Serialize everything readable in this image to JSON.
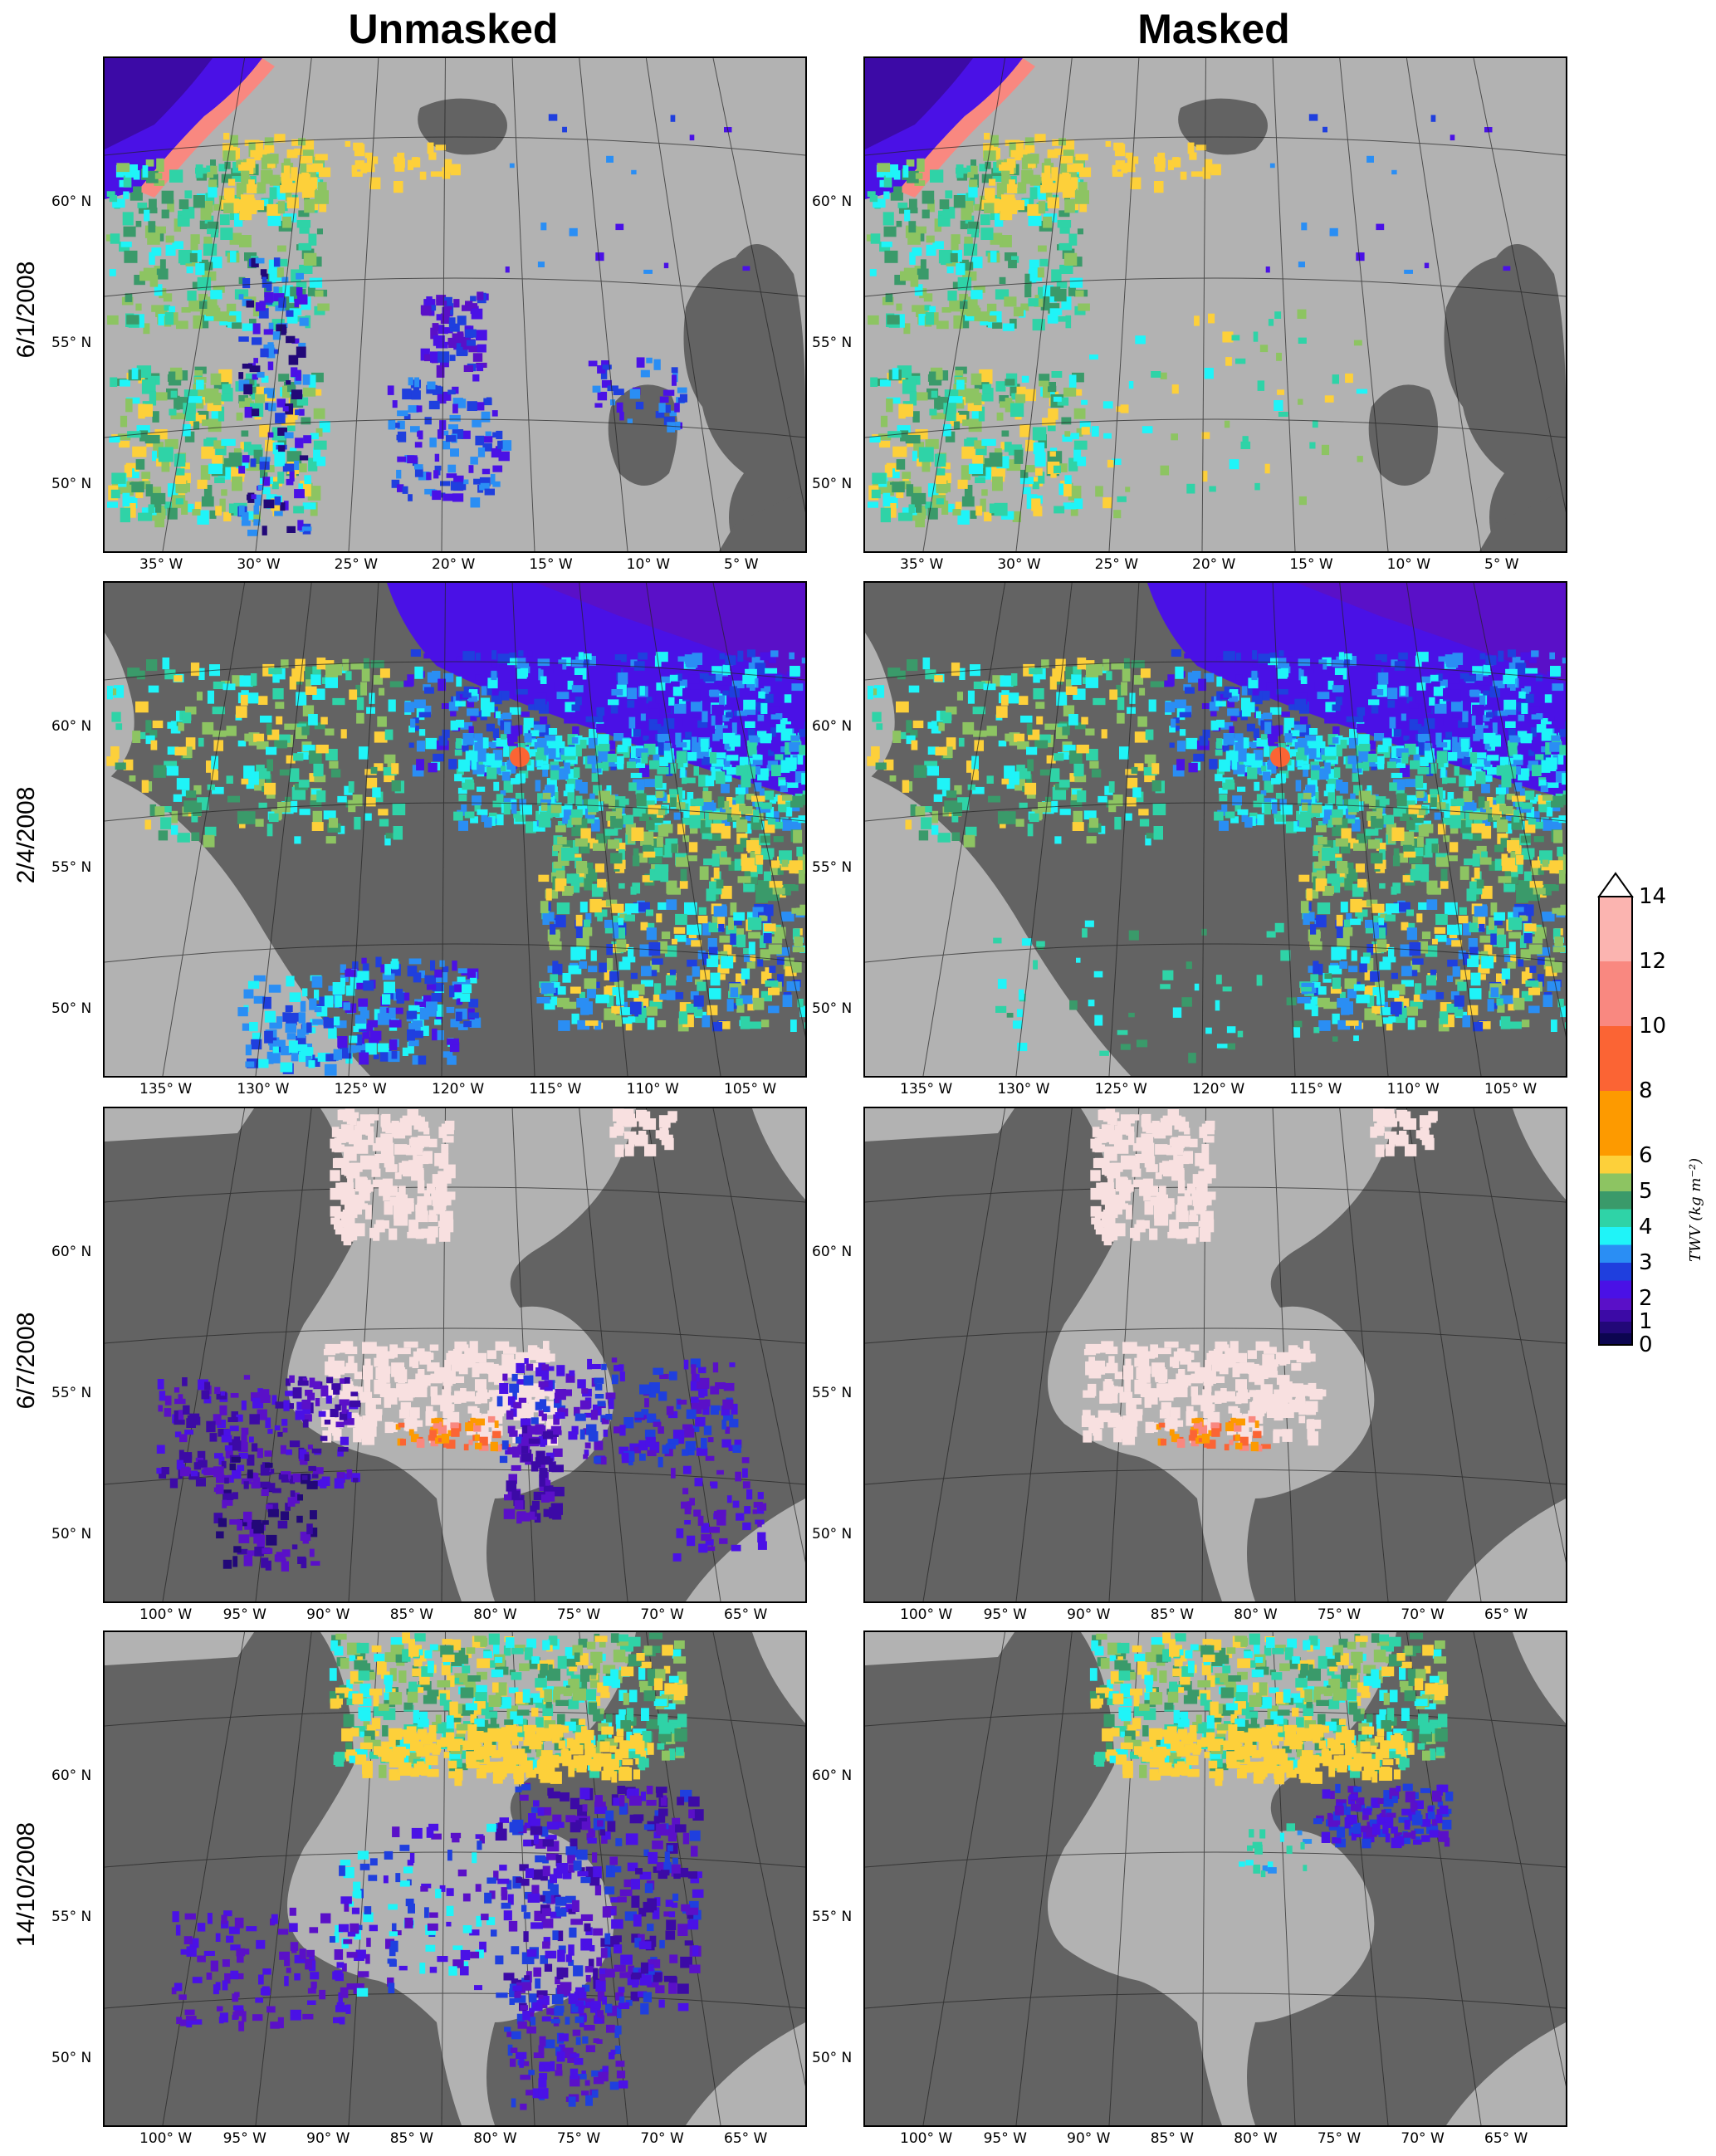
{
  "columns": [
    "Unmasked",
    "Masked"
  ],
  "rows": [
    {
      "date": "6/1/2008",
      "lat_labels": [
        "60° N",
        "55° N",
        "50° N"
      ],
      "lon_labels": [
        "35° W",
        "30° W",
        "25° W",
        "20° W",
        "15° W",
        "10° W",
        "5° W"
      ],
      "scene": "atlantic"
    },
    {
      "date": "2/4/2008",
      "lat_labels": [
        "60° N",
        "55° N",
        "50° N"
      ],
      "lon_labels": [
        "135° W",
        "130° W",
        "125° W",
        "120° W",
        "115° W",
        "110° W",
        "105° W"
      ],
      "scene": "west"
    },
    {
      "date": "6/7/2008",
      "lat_labels": [
        "60° N",
        "55° N",
        "50° N"
      ],
      "lon_labels": [
        "100° W",
        "95° W",
        "90° W",
        "85° W",
        "80° W",
        "75° W",
        "70° W",
        "65° W"
      ],
      "scene": "hudson"
    },
    {
      "date": "14/10/2008",
      "lat_labels": [
        "60° N",
        "55° N",
        "50° N"
      ],
      "lon_labels": [
        "100° W",
        "95° W",
        "90° W",
        "85° W",
        "80° W",
        "75° W",
        "70° W",
        "65° W"
      ],
      "scene": "hudson2"
    }
  ],
  "colorbar": {
    "title": "TWV (kg m⁻²)",
    "tick_labels": [
      "14",
      "12",
      "10",
      "8",
      "6",
      "5",
      "4",
      "3",
      "2",
      "1",
      "0"
    ],
    "bands": [
      {
        "from": 12,
        "to": 14,
        "color": "#fbb4b0"
      },
      {
        "from": 10,
        "to": 12,
        "color": "#f98880"
      },
      {
        "from": 8,
        "to": 10,
        "color": "#fb6434"
      },
      {
        "from": 6,
        "to": 8,
        "color": "#fd9a00"
      },
      {
        "from": 5.5,
        "to": 6,
        "color": "#fdd03a"
      },
      {
        "from": 5,
        "to": 5.5,
        "color": "#8dc462"
      },
      {
        "from": 4.5,
        "to": 5,
        "color": "#3a9a6a"
      },
      {
        "from": 4,
        "to": 4.5,
        "color": "#2fd3a7"
      },
      {
        "from": 3.5,
        "to": 4,
        "color": "#1ff4f8"
      },
      {
        "from": 3,
        "to": 3.5,
        "color": "#2a8ef4"
      },
      {
        "from": 2.5,
        "to": 3,
        "color": "#1f3fde"
      },
      {
        "from": 2,
        "to": 2.5,
        "color": "#4a11e6"
      },
      {
        "from": 1.5,
        "to": 2,
        "color": "#5a10c8"
      },
      {
        "from": 1,
        "to": 1.5,
        "color": "#3c0aa6"
      },
      {
        "from": 0.5,
        "to": 1,
        "color": "#220878"
      },
      {
        "from": 0,
        "to": 0.5,
        "color": "#0c0550"
      }
    ]
  }
}
